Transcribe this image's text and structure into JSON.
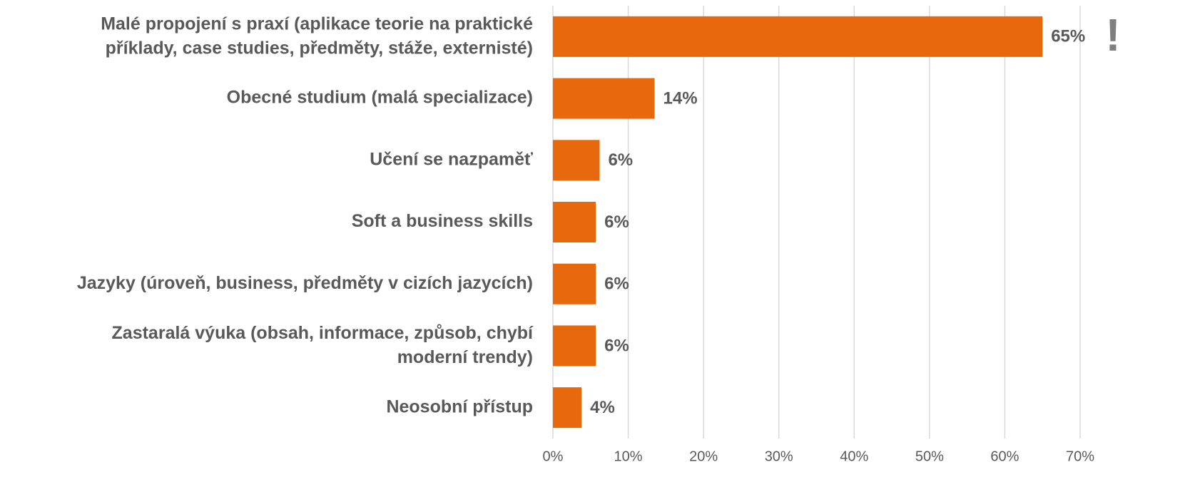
{
  "chart_data": {
    "type": "bar",
    "orientation": "horizontal",
    "categories": [
      "Malé propojení s praxí (aplikace teorie na praktické\npříklady, case studies, předměty, stáže, externisté)",
      "Obecné studium (malá specializace)",
      "Učení se nazpaměť",
      "Soft a business skills",
      "Jazyky (úroveň, business, předměty v cizích jazycích)",
      "Zastaralá výuka (obsah, informace, způsob, chybí\nmoderní trendy)",
      "Neosobní přístup"
    ],
    "values": [
      65,
      13.5,
      6.2,
      5.7,
      5.7,
      5.7,
      3.8
    ],
    "value_labels": [
      "65%",
      "14%",
      "6%",
      "6%",
      "6%",
      "6%",
      "4%"
    ],
    "color": "#e8690d",
    "xlim": [
      0,
      70
    ],
    "xticks": [
      {
        "value": 0,
        "label": "0%"
      },
      {
        "value": 10,
        "label": "10%"
      },
      {
        "value": 20,
        "label": "20%"
      },
      {
        "value": 30,
        "label": "30%"
      },
      {
        "value": 40,
        "label": "40%"
      },
      {
        "value": 50,
        "label": "50%"
      },
      {
        "value": 60,
        "label": "60%"
      },
      {
        "value": 70,
        "label": "70%"
      }
    ],
    "grid": true,
    "annotation": "!"
  }
}
